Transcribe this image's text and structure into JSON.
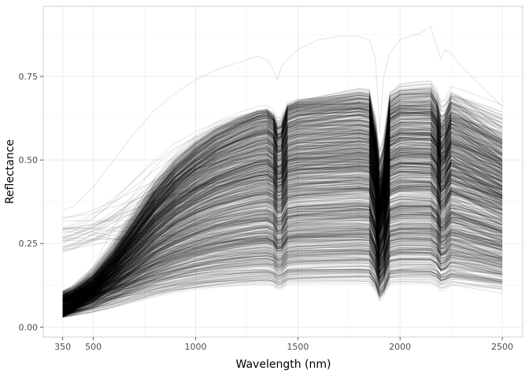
{
  "chart_data": {
    "type": "line",
    "title": "",
    "xlabel": "Wavelength (nm)",
    "ylabel": "Reflectance",
    "xlim": [
      255,
      2600
    ],
    "ylim": [
      -0.03,
      0.96
    ],
    "x_ticks": [
      350,
      500,
      1000,
      1500,
      2000,
      2500
    ],
    "y_ticks": [
      0.0,
      0.25,
      0.5,
      0.75
    ],
    "y_tick_labels": [
      "0.00",
      "0.25",
      "0.50",
      "0.75"
    ],
    "grid": true,
    "legend": "none",
    "line_color": "#000000",
    "line_alpha": 0.1,
    "series_count": 900,
    "x": [
      350,
      400,
      500,
      600,
      700,
      800,
      900,
      1000,
      1100,
      1200,
      1300,
      1350,
      1380,
      1400,
      1420,
      1450,
      1500,
      1600,
      1700,
      1800,
      1850,
      1880,
      1900,
      1920,
      1950,
      2000,
      2100,
      2150,
      2180,
      2200,
      2220,
      2250,
      2300,
      2400,
      2500
    ],
    "representative_series": [
      {
        "values": [
          0.07,
          0.09,
          0.18,
          0.3,
          0.4,
          0.48,
          0.53,
          0.57,
          0.6,
          0.61,
          0.62,
          0.61,
          0.58,
          0.53,
          0.59,
          0.62,
          0.63,
          0.64,
          0.65,
          0.66,
          0.66,
          0.63,
          0.45,
          0.55,
          0.62,
          0.65,
          0.67,
          0.68,
          0.64,
          0.56,
          0.63,
          0.66,
          0.64,
          0.6,
          0.55
        ]
      },
      {
        "values": [
          0.06,
          0.07,
          0.12,
          0.2,
          0.28,
          0.35,
          0.4,
          0.44,
          0.47,
          0.49,
          0.5,
          0.5,
          0.47,
          0.42,
          0.47,
          0.5,
          0.51,
          0.52,
          0.53,
          0.54,
          0.54,
          0.51,
          0.36,
          0.44,
          0.5,
          0.53,
          0.55,
          0.56,
          0.52,
          0.45,
          0.51,
          0.53,
          0.51,
          0.47,
          0.42
        ]
      },
      {
        "values": [
          0.05,
          0.06,
          0.09,
          0.13,
          0.17,
          0.21,
          0.24,
          0.26,
          0.28,
          0.29,
          0.3,
          0.3,
          0.28,
          0.25,
          0.28,
          0.3,
          0.31,
          0.31,
          0.32,
          0.32,
          0.32,
          0.3,
          0.21,
          0.26,
          0.3,
          0.31,
          0.32,
          0.32,
          0.3,
          0.26,
          0.29,
          0.3,
          0.29,
          0.27,
          0.24
        ]
      },
      {
        "values": [
          0.04,
          0.05,
          0.06,
          0.08,
          0.1,
          0.12,
          0.14,
          0.15,
          0.16,
          0.17,
          0.17,
          0.17,
          0.16,
          0.14,
          0.16,
          0.17,
          0.17,
          0.18,
          0.18,
          0.18,
          0.18,
          0.17,
          0.12,
          0.15,
          0.17,
          0.17,
          0.18,
          0.18,
          0.17,
          0.15,
          0.17,
          0.17,
          0.16,
          0.15,
          0.14
        ]
      },
      {
        "values": [
          0.35,
          0.36,
          0.42,
          0.5,
          0.58,
          0.65,
          0.7,
          0.74,
          0.77,
          0.79,
          0.81,
          0.8,
          0.77,
          0.74,
          0.78,
          0.8,
          0.83,
          0.86,
          0.87,
          0.87,
          0.86,
          0.8,
          0.58,
          0.75,
          0.82,
          0.86,
          0.88,
          0.9,
          0.84,
          0.8,
          0.83,
          0.82,
          0.78,
          0.72,
          0.66
        ]
      }
    ]
  }
}
